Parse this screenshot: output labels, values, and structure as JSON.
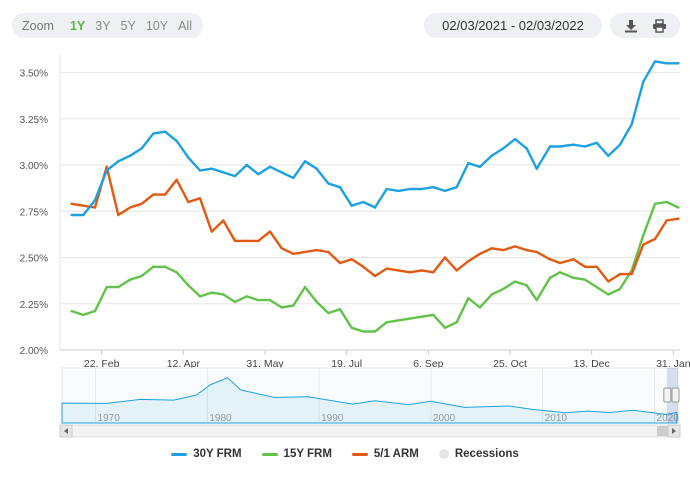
{
  "toolbar": {
    "zoom_label": "Zoom",
    "ranges": [
      "1Y",
      "3Y",
      "5Y",
      "10Y",
      "All"
    ],
    "active_range": "1Y",
    "date_range": "02/03/2021 - 02/03/2022",
    "download_icon": "download-icon",
    "print_icon": "print-icon"
  },
  "colors": {
    "frm30": "#1da1e0",
    "frm15": "#62c24a",
    "arm51": "#e25a12",
    "recessions": "#e4e6ea",
    "accent": "#58b947"
  },
  "chart_data": {
    "type": "line",
    "title": "",
    "xlabel": "",
    "ylabel": "",
    "ylim": [
      2.0,
      3.6
    ],
    "y_ticks": [
      "2.00%",
      "2.25%",
      "2.50%",
      "2.75%",
      "3.00%",
      "3.25%",
      "3.50%"
    ],
    "x_ticks": [
      "22. Feb",
      "12. Apr",
      "31. May",
      "19. Jul",
      "6. Sep",
      "25. Oct",
      "13. Dec",
      "31. Jan"
    ],
    "grid": true,
    "legend_position": "bottom",
    "legend": [
      "30Y FRM",
      "15Y FRM",
      "5/1 ARM",
      "Recessions"
    ],
    "x": [
      "2021-02-04",
      "2021-02-11",
      "2021-02-18",
      "2021-02-25",
      "2021-03-04",
      "2021-03-11",
      "2021-03-18",
      "2021-03-25",
      "2021-04-01",
      "2021-04-08",
      "2021-04-15",
      "2021-04-22",
      "2021-04-29",
      "2021-05-06",
      "2021-05-13",
      "2021-05-20",
      "2021-05-27",
      "2021-06-03",
      "2021-06-10",
      "2021-06-17",
      "2021-06-24",
      "2021-07-01",
      "2021-07-08",
      "2021-07-15",
      "2021-07-22",
      "2021-07-29",
      "2021-08-05",
      "2021-08-12",
      "2021-08-19",
      "2021-08-26",
      "2021-09-02",
      "2021-09-09",
      "2021-09-16",
      "2021-09-23",
      "2021-09-30",
      "2021-10-07",
      "2021-10-14",
      "2021-10-21",
      "2021-10-28",
      "2021-11-04",
      "2021-11-10",
      "2021-11-18",
      "2021-11-24",
      "2021-12-02",
      "2021-12-09",
      "2021-12-16",
      "2021-12-23",
      "2021-12-30",
      "2022-01-06",
      "2022-01-13",
      "2022-01-20",
      "2022-01-27",
      "2022-02-03"
    ],
    "series": [
      {
        "name": "30Y FRM",
        "values": [
          2.73,
          2.73,
          2.81,
          2.97,
          3.02,
          3.05,
          3.09,
          3.17,
          3.18,
          3.13,
          3.04,
          2.97,
          2.98,
          2.96,
          2.94,
          3.0,
          2.95,
          2.99,
          2.96,
          2.93,
          3.02,
          2.98,
          2.9,
          2.88,
          2.78,
          2.8,
          2.77,
          2.87,
          2.86,
          2.87,
          2.87,
          2.88,
          2.86,
          2.88,
          3.01,
          2.99,
          3.05,
          3.09,
          3.14,
          3.09,
          2.98,
          3.1,
          3.1,
          3.11,
          3.1,
          3.12,
          3.05,
          3.11,
          3.22,
          3.45,
          3.56,
          3.55,
          3.55
        ]
      },
      {
        "name": "15Y FRM",
        "values": [
          2.21,
          2.19,
          2.21,
          2.34,
          2.34,
          2.38,
          2.4,
          2.45,
          2.45,
          2.42,
          2.35,
          2.29,
          2.31,
          2.3,
          2.26,
          2.29,
          2.27,
          2.27,
          2.23,
          2.24,
          2.34,
          2.26,
          2.2,
          2.22,
          2.12,
          2.1,
          2.1,
          2.15,
          2.16,
          2.17,
          2.18,
          2.19,
          2.12,
          2.15,
          2.28,
          2.23,
          2.3,
          2.33,
          2.37,
          2.35,
          2.27,
          2.39,
          2.42,
          2.39,
          2.38,
          2.34,
          2.3,
          2.33,
          2.43,
          2.62,
          2.79,
          2.8,
          2.77
        ]
      },
      {
        "name": "5/1 ARM",
        "values": [
          2.79,
          2.78,
          2.77,
          2.99,
          2.73,
          2.77,
          2.79,
          2.84,
          2.84,
          2.92,
          2.8,
          2.82,
          2.64,
          2.7,
          2.59,
          2.59,
          2.59,
          2.64,
          2.55,
          2.52,
          2.53,
          2.54,
          2.53,
          2.47,
          2.49,
          2.45,
          2.4,
          2.44,
          2.43,
          2.42,
          2.43,
          2.42,
          2.5,
          2.43,
          2.48,
          2.52,
          2.55,
          2.54,
          2.56,
          2.54,
          2.53,
          2.49,
          2.47,
          2.49,
          2.45,
          2.45,
          2.37,
          2.41,
          2.41,
          2.57,
          2.6,
          2.7,
          2.71
        ]
      }
    ]
  }
}
